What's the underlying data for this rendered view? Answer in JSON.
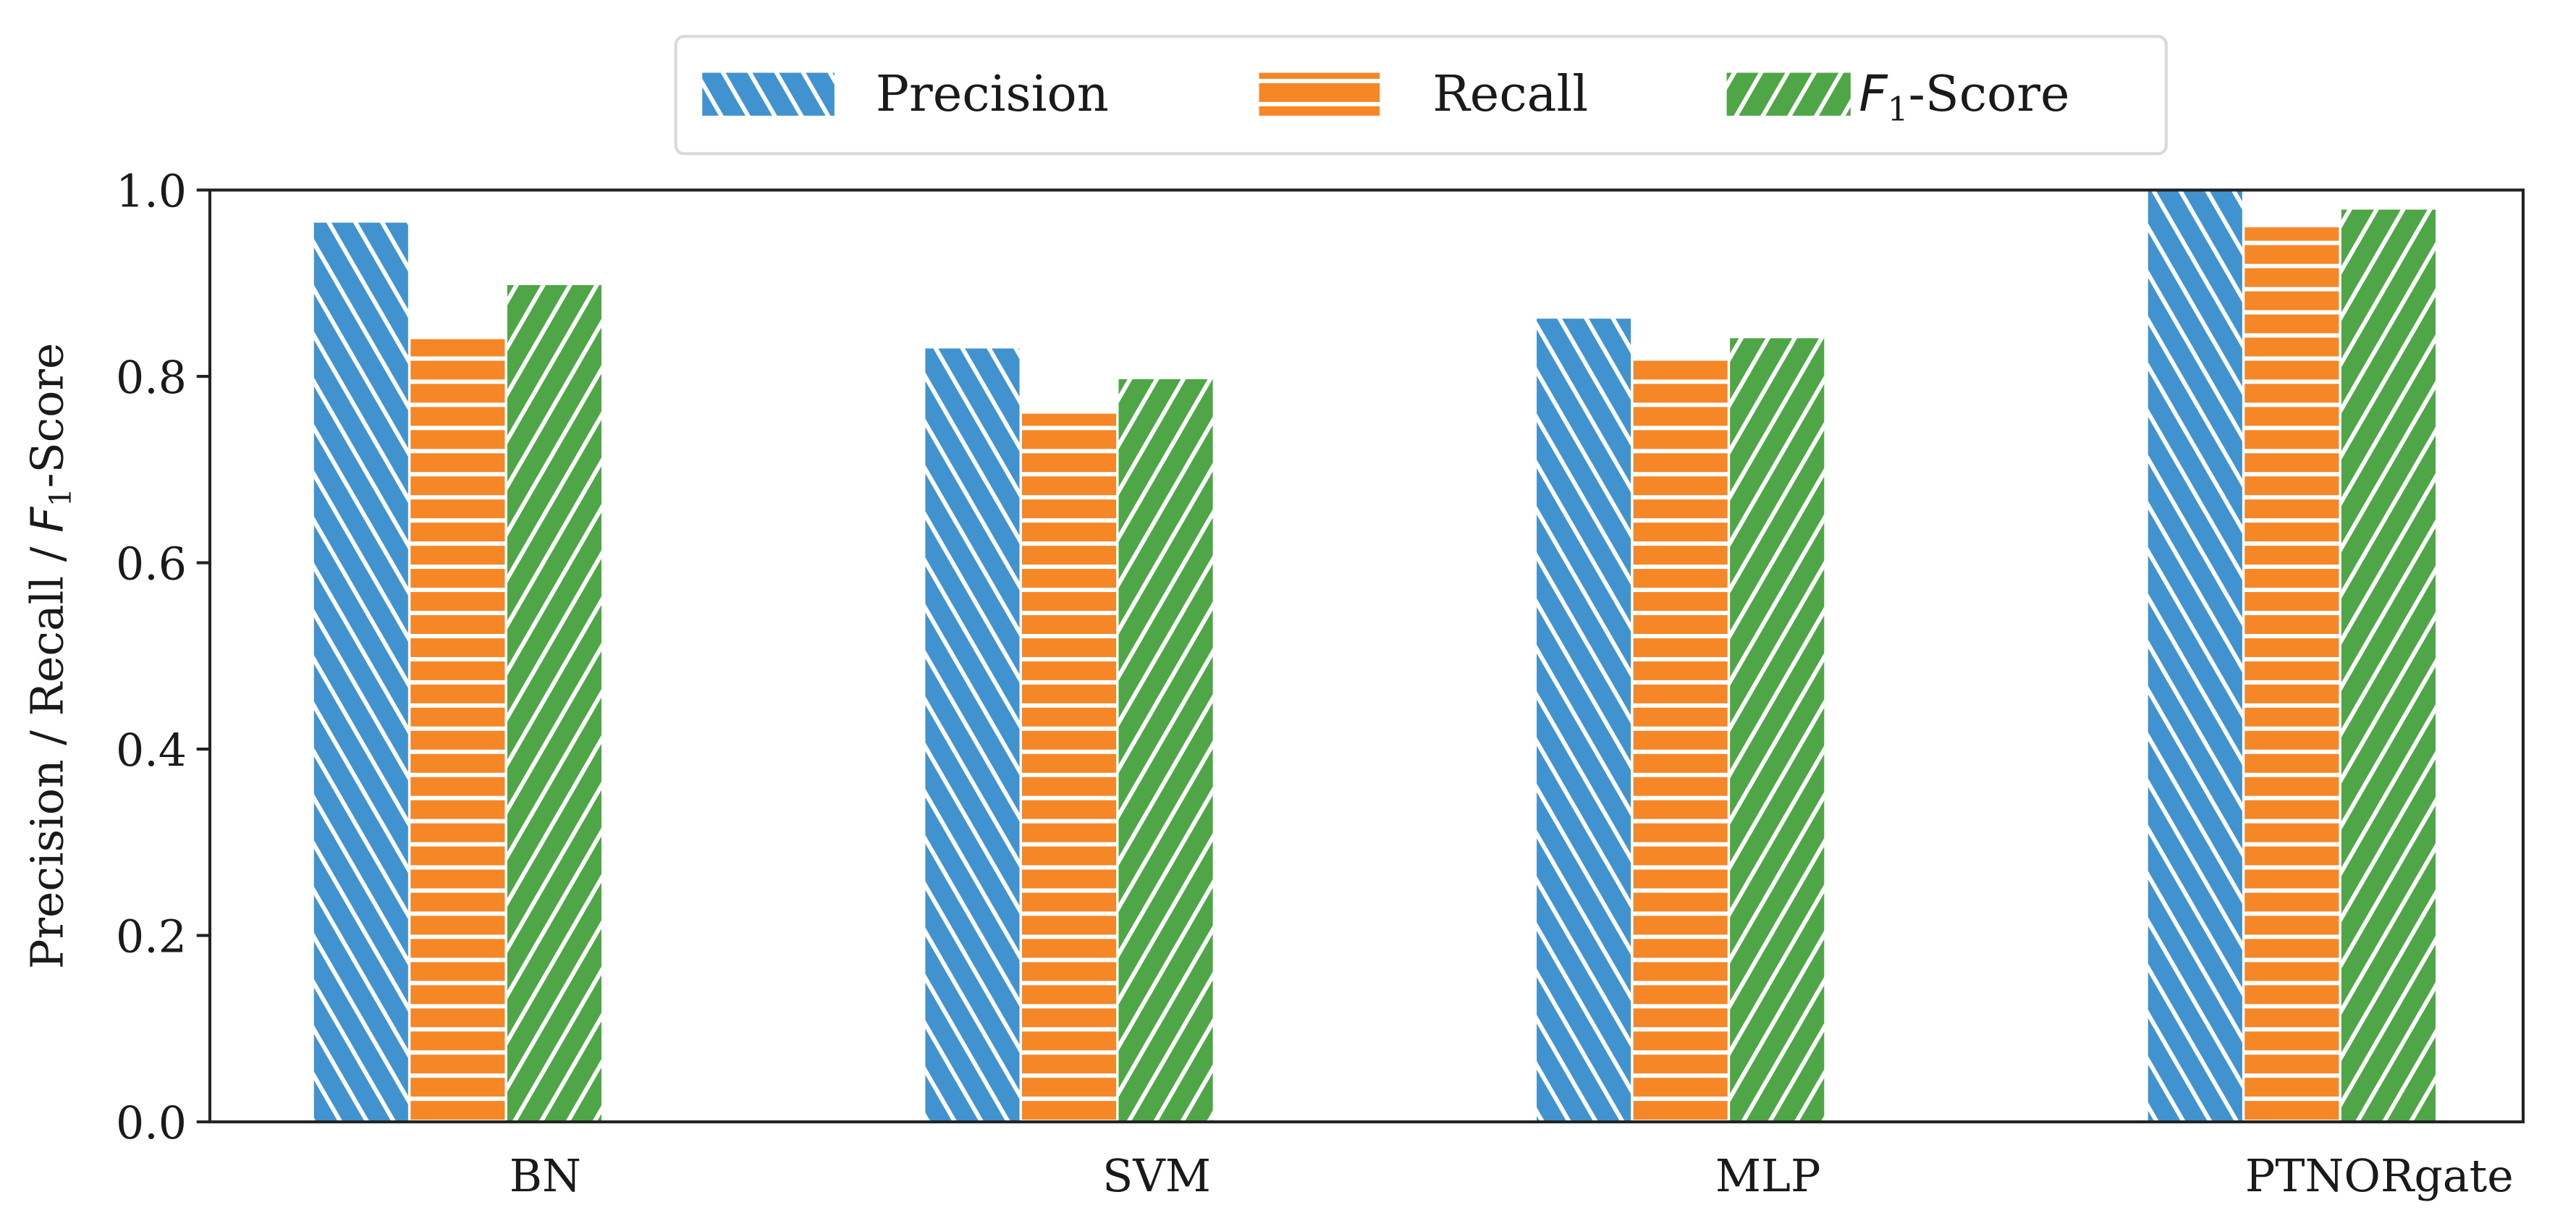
{
  "chart_data": {
    "type": "bar",
    "title": "",
    "xlabel": "",
    "ylabel": "Precision / Recall / F1-Score",
    "ylabel_parts": {
      "pre": "Precision / Recall / ",
      "italic": "F",
      "sub": "1",
      "post": "-Score"
    },
    "ylim": [
      0,
      1.0
    ],
    "yticks": [
      "0.0",
      "0.2",
      "0.4",
      "0.6",
      "0.8",
      "1.0"
    ],
    "categories": [
      "BN",
      "SVM",
      "MLP",
      "PTNORgate"
    ],
    "grid": false,
    "legend_placement": "top-center, outside",
    "series": [
      {
        "name": "Precision",
        "color": "#4193cf",
        "hatch": "backslash",
        "values": [
          0.965,
          0.83,
          0.862,
          1.0
        ]
      },
      {
        "name": "Recall",
        "color": "#f58727",
        "hatch": "horizontal",
        "values": [
          0.84,
          0.76,
          0.821,
          0.96
        ]
      },
      {
        "name": "F1-Score",
        "legend_parts": {
          "italic": "F",
          "sub": "1",
          "post": "-Score"
        },
        "color": "#4ea646",
        "hatch": "slash",
        "values": [
          0.898,
          0.797,
          0.841,
          0.979
        ]
      }
    ]
  }
}
